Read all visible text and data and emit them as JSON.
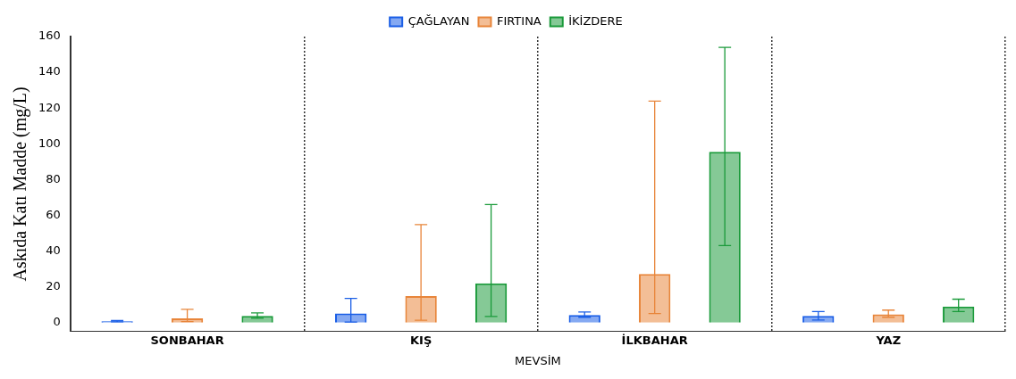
{
  "chart_data": {
    "type": "bar",
    "xlabel": "MEVSİM",
    "ylabel": "Askıda Katı Madde (mg/L)",
    "categories": [
      "SONBAHAR",
      "KIŞ",
      "İLKBAHAR",
      "YAZ"
    ],
    "series": [
      {
        "name": "ÇAĞLAYAN",
        "color": "#1a5ee6",
        "values": [
          0.8,
          5.1,
          4.2,
          3.7
        ],
        "errors": [
          [
            0.4,
            1.2
          ],
          [
            0.3,
            13.5
          ],
          [
            3.0,
            5.9
          ],
          [
            1.4,
            6.2
          ]
        ]
      },
      {
        "name": "FIRTINA",
        "color": "#e8853a",
        "values": [
          2.4,
          14.8,
          27.2,
          4.6
        ],
        "errors": [
          [
            0.6,
            7.4
          ],
          [
            1.3,
            54.8
          ],
          [
            5.1,
            123.9
          ],
          [
            3.0,
            7.0
          ]
        ]
      },
      {
        "name": "İKİZDERE",
        "color": "#1a9a3a",
        "values": [
          3.8,
          22.0,
          95.5,
          9.0
        ],
        "errors": [
          [
            2.4,
            5.4
          ],
          [
            3.4,
            66
          ],
          [
            43.1,
            154
          ],
          [
            6.2,
            13.1
          ]
        ]
      }
    ],
    "ylim": [
      -5,
      160
    ],
    "yticks": [
      0,
      20,
      40,
      60,
      80,
      100,
      120,
      140,
      160
    ],
    "grid": "x",
    "legend": "top"
  }
}
